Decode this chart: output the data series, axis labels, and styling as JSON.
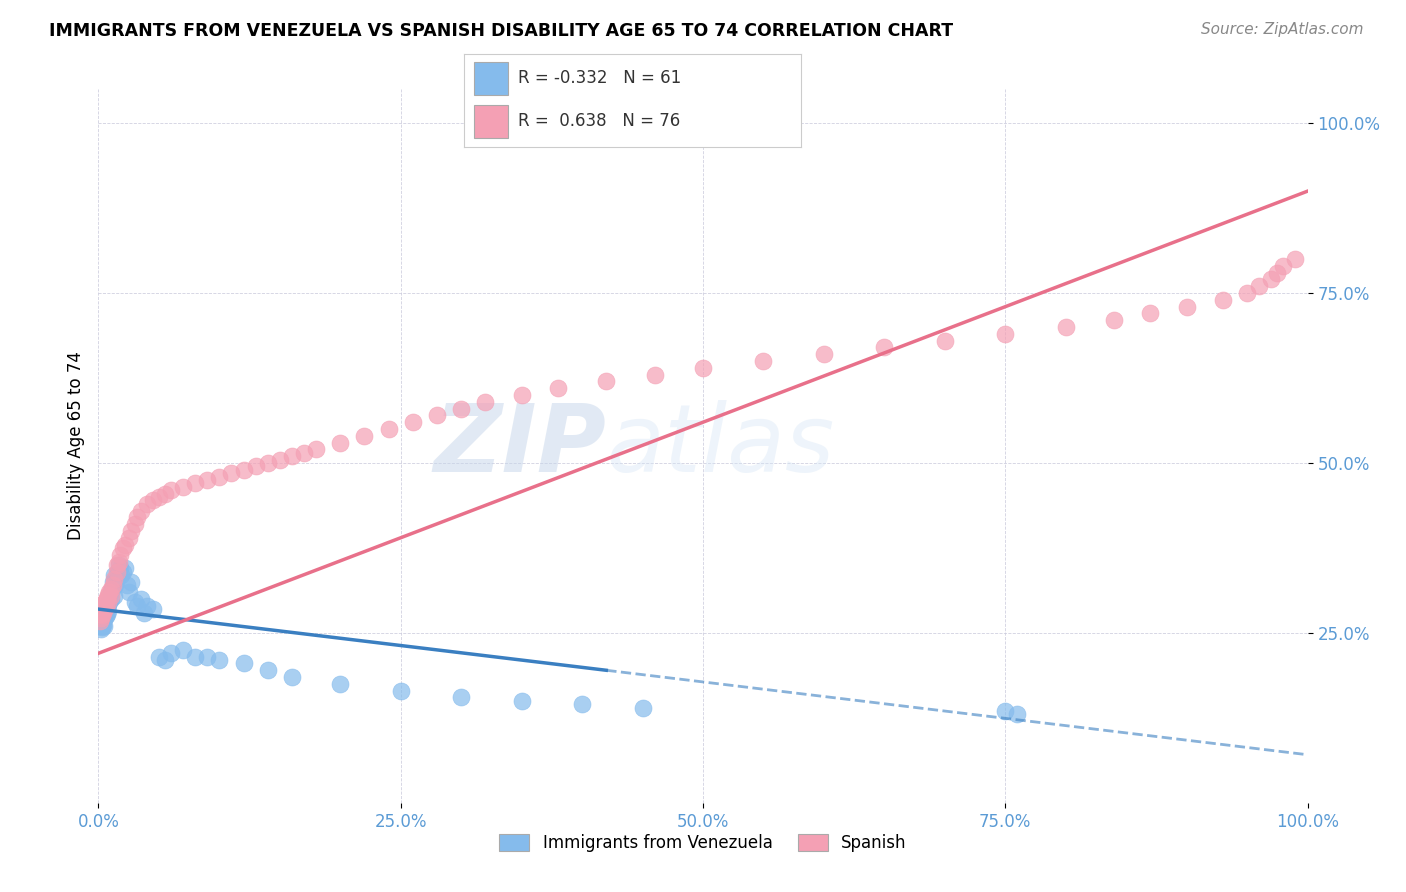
{
  "title": "IMMIGRANTS FROM VENEZUELA VS SPANISH DISABILITY AGE 65 TO 74 CORRELATION CHART",
  "source": "Source: ZipAtlas.com",
  "ylabel": "Disability Age 65 to 74",
  "xlim": [
    0.0,
    1.0
  ],
  "ylim": [
    0.0,
    1.05
  ],
  "xticks": [
    0.0,
    0.25,
    0.5,
    0.75,
    1.0
  ],
  "yticks": [
    0.25,
    0.5,
    0.75,
    1.0
  ],
  "xtick_labels": [
    "0.0%",
    "25.0%",
    "50.0%",
    "75.0%",
    "100.0%"
  ],
  "ytick_labels": [
    "25.0%",
    "50.0%",
    "75.0%",
    "100.0%"
  ],
  "blue_R": -0.332,
  "blue_N": 61,
  "pink_R": 0.638,
  "pink_N": 76,
  "blue_color": "#85BBEC",
  "pink_color": "#F4A0B4",
  "blue_line_color": "#3A7FC1",
  "pink_line_color": "#E8708A",
  "watermark_zip": "ZIP",
  "watermark_atlas": "atlas",
  "legend_blue": "Immigrants from Venezuela",
  "legend_pink": "Spanish",
  "blue_scatter_x": [
    0.001,
    0.001,
    0.002,
    0.002,
    0.002,
    0.003,
    0.003,
    0.003,
    0.004,
    0.004,
    0.005,
    0.005,
    0.005,
    0.006,
    0.006,
    0.007,
    0.007,
    0.008,
    0.008,
    0.009,
    0.01,
    0.01,
    0.011,
    0.012,
    0.013,
    0.013,
    0.014,
    0.015,
    0.016,
    0.017,
    0.018,
    0.019,
    0.02,
    0.022,
    0.024,
    0.025,
    0.027,
    0.03,
    0.032,
    0.035,
    0.038,
    0.04,
    0.045,
    0.05,
    0.055,
    0.06,
    0.07,
    0.08,
    0.09,
    0.1,
    0.12,
    0.14,
    0.16,
    0.2,
    0.25,
    0.3,
    0.35,
    0.4,
    0.45,
    0.75,
    0.76
  ],
  "blue_scatter_y": [
    0.27,
    0.26,
    0.275,
    0.265,
    0.255,
    0.278,
    0.268,
    0.258,
    0.272,
    0.262,
    0.28,
    0.27,
    0.26,
    0.285,
    0.275,
    0.288,
    0.278,
    0.292,
    0.282,
    0.295,
    0.31,
    0.3,
    0.315,
    0.325,
    0.335,
    0.305,
    0.32,
    0.33,
    0.34,
    0.35,
    0.345,
    0.335,
    0.34,
    0.345,
    0.32,
    0.31,
    0.325,
    0.295,
    0.29,
    0.3,
    0.28,
    0.29,
    0.285,
    0.215,
    0.21,
    0.22,
    0.225,
    0.215,
    0.215,
    0.21,
    0.205,
    0.195,
    0.185,
    0.175,
    0.165,
    0.155,
    0.15,
    0.145,
    0.14,
    0.135,
    0.13
  ],
  "pink_scatter_x": [
    0.001,
    0.001,
    0.002,
    0.002,
    0.003,
    0.003,
    0.004,
    0.004,
    0.005,
    0.005,
    0.006,
    0.006,
    0.007,
    0.008,
    0.008,
    0.009,
    0.01,
    0.01,
    0.012,
    0.013,
    0.015,
    0.015,
    0.017,
    0.018,
    0.02,
    0.022,
    0.025,
    0.027,
    0.03,
    0.032,
    0.035,
    0.04,
    0.045,
    0.05,
    0.055,
    0.06,
    0.07,
    0.08,
    0.09,
    0.1,
    0.11,
    0.12,
    0.13,
    0.14,
    0.15,
    0.16,
    0.17,
    0.18,
    0.2,
    0.22,
    0.24,
    0.26,
    0.28,
    0.3,
    0.32,
    0.35,
    0.38,
    0.42,
    0.46,
    0.5,
    0.55,
    0.6,
    0.65,
    0.7,
    0.75,
    0.8,
    0.84,
    0.87,
    0.9,
    0.93,
    0.95,
    0.96,
    0.97,
    0.975,
    0.98,
    0.99
  ],
  "pink_scatter_y": [
    0.278,
    0.268,
    0.282,
    0.272,
    0.286,
    0.276,
    0.29,
    0.28,
    0.294,
    0.284,
    0.298,
    0.288,
    0.302,
    0.306,
    0.296,
    0.31,
    0.315,
    0.305,
    0.32,
    0.33,
    0.34,
    0.35,
    0.355,
    0.365,
    0.375,
    0.38,
    0.39,
    0.4,
    0.41,
    0.42,
    0.43,
    0.44,
    0.445,
    0.45,
    0.455,
    0.46,
    0.465,
    0.47,
    0.475,
    0.48,
    0.485,
    0.49,
    0.495,
    0.5,
    0.505,
    0.51,
    0.515,
    0.52,
    0.53,
    0.54,
    0.55,
    0.56,
    0.57,
    0.58,
    0.59,
    0.6,
    0.61,
    0.62,
    0.63,
    0.64,
    0.65,
    0.66,
    0.67,
    0.68,
    0.69,
    0.7,
    0.71,
    0.72,
    0.73,
    0.74,
    0.75,
    0.76,
    0.77,
    0.78,
    0.79,
    0.8
  ],
  "blue_line_x_start": 0.0,
  "blue_line_x_solid_end": 0.42,
  "blue_line_y_start": 0.285,
  "blue_line_y_solid_end": 0.195,
  "pink_line_x_start": 0.0,
  "pink_line_x_end": 1.0,
  "pink_line_y_start": 0.22,
  "pink_line_y_end": 0.9
}
